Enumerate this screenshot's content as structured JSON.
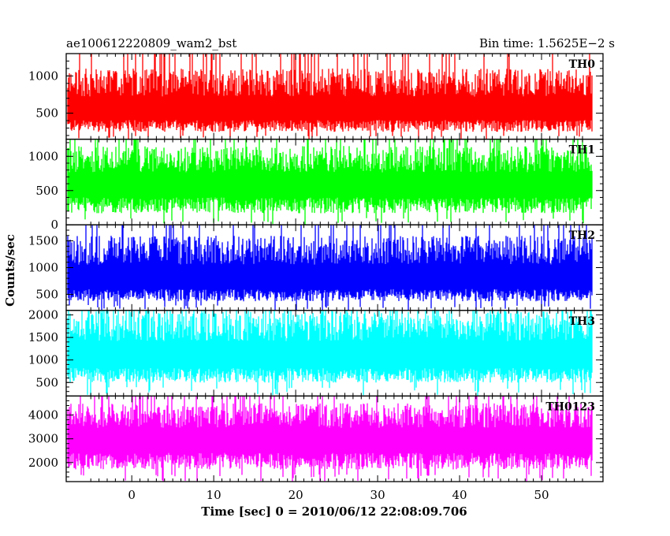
{
  "header": {
    "left_title": "ae100612220809_wam2_bst",
    "right_title": "Bin time: 1.5625E−2 s"
  },
  "chart_data": {
    "type": "line",
    "title": "ae100612220809_wam2_bst",
    "subtitle": "Bin time: 1.5625E−2 s",
    "xlabel": "Time [sec] 0 = 2010/06/12 22:08:09.706",
    "ylabel": "Counts/sec",
    "xlim": [
      -8,
      57.5
    ],
    "data_x_range": [
      -7.8,
      56.2
    ],
    "bin_time_s": 0.015625,
    "x_ticks": [
      0,
      10,
      20,
      30,
      40,
      50
    ],
    "x_tick_labels": [
      "0",
      "10",
      "20",
      "30",
      "40",
      "50"
    ],
    "grid": false,
    "panels": [
      {
        "name": "TH0",
        "color": "#ff0000",
        "ylim": [
          150,
          1300
        ],
        "y_ticks": [
          500,
          1000
        ],
        "y_tick_labels": [
          "500",
          "1000"
        ],
        "typical_range": [
          200,
          1100
        ],
        "mean": 520
      },
      {
        "name": "TH1",
        "color": "#00ff00",
        "ylim": [
          0,
          1250
        ],
        "y_ticks": [
          0,
          500,
          1000
        ],
        "y_tick_labels": [
          "0",
          "500",
          "1000"
        ],
        "typical_range": [
          100,
          1150
        ],
        "mean": 560
      },
      {
        "name": "TH2",
        "color": "#0000ff",
        "ylim": [
          200,
          1800
        ],
        "y_ticks": [
          500,
          1000,
          1500
        ],
        "y_tick_labels": [
          "500",
          "1000",
          "1500"
        ],
        "typical_range": [
          300,
          1600
        ],
        "mean": 760
      },
      {
        "name": "TH3",
        "color": "#00ffff",
        "ylim": [
          200,
          2100
        ],
        "y_ticks": [
          500,
          1000,
          1500,
          2000
        ],
        "y_tick_labels": [
          "500",
          "1000",
          "1500",
          "2000"
        ],
        "typical_range": [
          400,
          2100
        ],
        "mean": 1050
      },
      {
        "name": "TH0123",
        "color": "#ff00ff",
        "ylim": [
          1200,
          4800
        ],
        "y_ticks": [
          2000,
          3000,
          4000
        ],
        "y_tick_labels": [
          "2000",
          "3000",
          "4000"
        ],
        "typical_range": [
          1500,
          4500
        ],
        "mean": 2900
      }
    ]
  }
}
